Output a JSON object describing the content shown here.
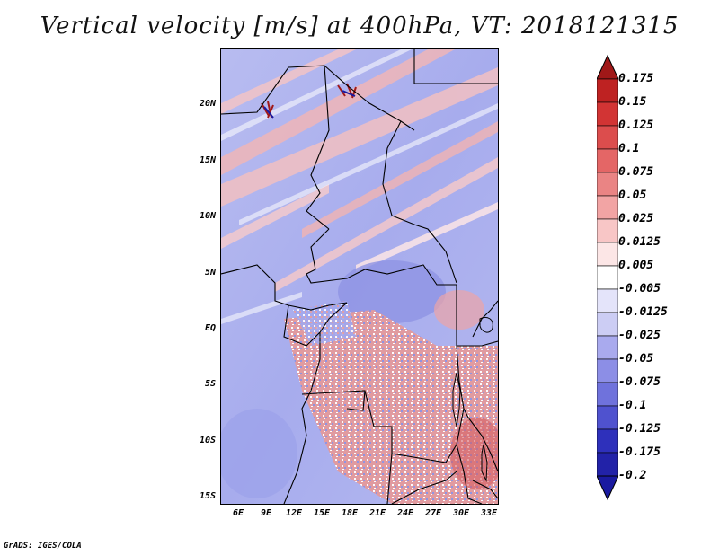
{
  "title": "Vertical velocity [m/s] at 400hPa, VT: 2018121315",
  "footer": "GrADS: IGES/COLA",
  "map": {
    "lat_labels": [
      "20N",
      "15N",
      "10N",
      "5N",
      "EQ",
      "5S",
      "10S",
      "15S"
    ],
    "lon_labels": [
      "6E",
      "9E",
      "12E",
      "15E",
      "18E",
      "21E",
      "24E",
      "27E",
      "30E",
      "33E"
    ]
  },
  "colorbar": {
    "labels": [
      "0.175",
      "0.15",
      "0.125",
      "0.1",
      "0.075",
      "0.05",
      "0.025",
      "0.0125",
      "0.005",
      "-0.005",
      "-0.0125",
      "-0.025",
      "-0.05",
      "-0.075",
      "-0.1",
      "-0.125",
      "-0.175",
      "-0.2"
    ],
    "colors": [
      "#a01818",
      "#be2222",
      "#d23434",
      "#dc4d4d",
      "#e46666",
      "#ea8484",
      "#f2a4a4",
      "#f8c6c6",
      "#fce6e6",
      "#ffffff",
      "#e4e4fa",
      "#cccdf4",
      "#a9aaee",
      "#8c8ee6",
      "#6f72dc",
      "#4f52cf",
      "#2e30bb",
      "#2222a8",
      "#1a1aa0"
    ]
  },
  "colors": {
    "negative": "#9ea6ea",
    "positive": "#eca2a4",
    "border": "#000000"
  }
}
